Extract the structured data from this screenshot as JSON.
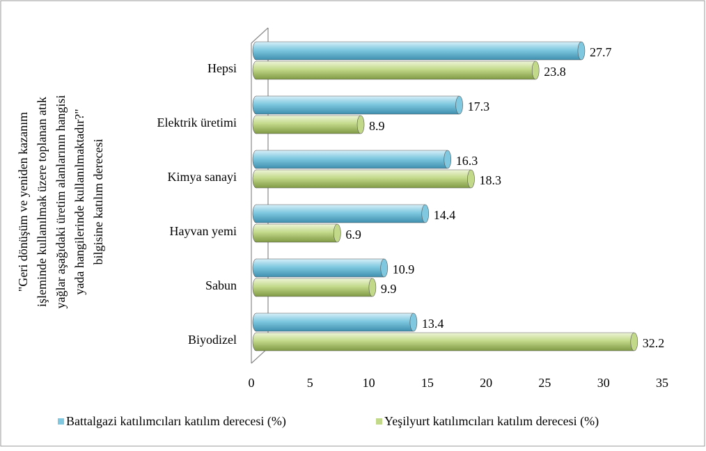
{
  "chart_data": {
    "type": "bar",
    "ylabel_lines": [
      "\"Geri dönüşüm ve yeniden kazanım",
      "işleminde kullanılmak üzere toplanan atık",
      "yağlar aşağıdaki üretim alanlarının hangisi",
      "yada hangilerinde kullanılmaktadır?\"",
      "bilgisine katılım derecesi"
    ],
    "categories": [
      "Hepsi",
      "Elektrik üretimi",
      "Kimya sanayi",
      "Hayvan yemi",
      "Sabun",
      "Biyodizel"
    ],
    "series": [
      {
        "name": "Battalgazi katılımcıları katılım derecesi (%)",
        "color": "#7fc8e0",
        "values": [
          27.7,
          17.3,
          16.3,
          14.4,
          10.9,
          13.4
        ]
      },
      {
        "name": "Yeşilyurt katılımcıları katılım derecesi (%)",
        "color": "#c3d98a",
        "values": [
          23.8,
          8.9,
          18.3,
          6.9,
          9.9,
          32.2
        ]
      }
    ],
    "xlim": [
      0,
      35
    ],
    "xticks": [
      0,
      5,
      10,
      15,
      20,
      25,
      30,
      35
    ],
    "legend": "bottom"
  }
}
